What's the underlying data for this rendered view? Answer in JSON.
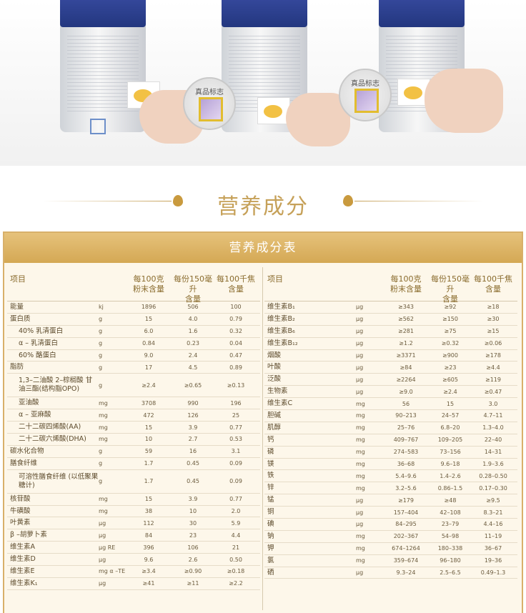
{
  "badge_label": "真品标志",
  "section_title": "营养成分",
  "table_title": "营养成分表",
  "headers": {
    "item": "项目",
    "per100g": [
      "每100克",
      "粉末含量"
    ],
    "per150ml": [
      "每份150毫升",
      "含量"
    ],
    "per100kcal": [
      "每100千焦",
      "含量"
    ]
  },
  "left_rows": [
    {
      "name": "能量",
      "unit": "kj",
      "a": "1896",
      "b": "506",
      "c": "100",
      "indent": false
    },
    {
      "name": "蛋白质",
      "unit": "g",
      "a": "15",
      "b": "4.0",
      "c": "0.79",
      "indent": false
    },
    {
      "name": "40% 乳清蛋白",
      "unit": "g",
      "a": "6.0",
      "b": "1.6",
      "c": "0.32",
      "indent": true
    },
    {
      "name": "α – 乳清蛋白",
      "unit": "g",
      "a": "0.84",
      "b": "0.23",
      "c": "0.04",
      "indent": true
    },
    {
      "name": "60% 酪蛋白",
      "unit": "g",
      "a": "9.0",
      "b": "2.4",
      "c": "0.47",
      "indent": true
    },
    {
      "name": "脂肪",
      "unit": "g",
      "a": "17",
      "b": "4.5",
      "c": "0.89",
      "indent": false
    },
    {
      "name": "1,3–二油酸 2–棕榈酸 甘油三酯(结构脂OPO)",
      "unit": "g",
      "a": "≥2.4",
      "b": "≥0.65",
      "c": "≥0.13",
      "indent": true,
      "tall": true
    },
    {
      "name": "亚油酸",
      "unit": "mg",
      "a": "3708",
      "b": "990",
      "c": "196",
      "indent": true
    },
    {
      "name": "α – 亚麻酸",
      "unit": "mg",
      "a": "472",
      "b": "126",
      "c": "25",
      "indent": true
    },
    {
      "name": "二十二碳四烯酸(AA)",
      "unit": "mg",
      "a": "15",
      "b": "3.9",
      "c": "0.77",
      "indent": true
    },
    {
      "name": "二十二碳六烯酸(DHA)",
      "unit": "mg",
      "a": "10",
      "b": "2.7",
      "c": "0.53",
      "indent": true
    },
    {
      "name": "碳水化合物",
      "unit": "g",
      "a": "59",
      "b": "16",
      "c": "3.1",
      "indent": false
    },
    {
      "name": "膳食纤维",
      "unit": "g",
      "a": "1.7",
      "b": "0.45",
      "c": "0.09",
      "indent": false
    },
    {
      "name": "可溶性膳食纤维 (以低聚果糖计)",
      "unit": "g",
      "a": "1.7",
      "b": "0.45",
      "c": "0.09",
      "indent": true,
      "tall": true
    },
    {
      "name": "核苷酸",
      "unit": "mg",
      "a": "15",
      "b": "3.9",
      "c": "0.77",
      "indent": false
    },
    {
      "name": "牛磺酸",
      "unit": "mg",
      "a": "38",
      "b": "10",
      "c": "2.0",
      "indent": false
    },
    {
      "name": "叶黄素",
      "unit": "μg",
      "a": "112",
      "b": "30",
      "c": "5.9",
      "indent": false
    },
    {
      "name": "β –胡萝卜素",
      "unit": "μg",
      "a": "84",
      "b": "23",
      "c": "4.4",
      "indent": false
    },
    {
      "name": "维生素A",
      "unit": "μg RE",
      "a": "396",
      "b": "106",
      "c": "21",
      "indent": false
    },
    {
      "name": "维生素D",
      "unit": "μg",
      "a": "9.6",
      "b": "2.6",
      "c": "0.50",
      "indent": false
    },
    {
      "name": "维生素E",
      "unit": "mg α –TE",
      "a": "≥3.4",
      "b": "≥0.90",
      "c": "≥0.18",
      "indent": false
    },
    {
      "name": "维生素K₁",
      "unit": "μg",
      "a": "≥41",
      "b": "≥11",
      "c": "≥2.2",
      "indent": false
    }
  ],
  "right_rows": [
    {
      "name": "维生素B₁",
      "unit": "μg",
      "a": "≥343",
      "b": "≥92",
      "c": "≥18"
    },
    {
      "name": "维生素B₂",
      "unit": "μg",
      "a": "≥562",
      "b": "≥150",
      "c": "≥30"
    },
    {
      "name": "维生素B₆",
      "unit": "μg",
      "a": "≥281",
      "b": "≥75",
      "c": "≥15"
    },
    {
      "name": "维生素B₁₂",
      "unit": "μg",
      "a": "≥1.2",
      "b": "≥0.32",
      "c": "≥0.06"
    },
    {
      "name": "烟酸",
      "unit": "μg",
      "a": "≥3371",
      "b": "≥900",
      "c": "≥178"
    },
    {
      "name": "叶酸",
      "unit": "μg",
      "a": "≥84",
      "b": "≥23",
      "c": "≥4.4"
    },
    {
      "name": "泛酸",
      "unit": "μg",
      "a": "≥2264",
      "b": "≥605",
      "c": "≥119"
    },
    {
      "name": "生物素",
      "unit": "μg",
      "a": "≥9.0",
      "b": "≥2.4",
      "c": "≥0.47"
    },
    {
      "name": "维生素C",
      "unit": "mg",
      "a": "56",
      "b": "15",
      "c": "3.0"
    },
    {
      "name": "胆碱",
      "unit": "mg",
      "a": "90–213",
      "b": "24–57",
      "c": "4.7–11"
    },
    {
      "name": "肌醇",
      "unit": "mg",
      "a": "25–76",
      "b": "6.8–20",
      "c": "1.3–4.0"
    },
    {
      "name": "钙",
      "unit": "mg",
      "a": "409–767",
      "b": "109–205",
      "c": "22–40"
    },
    {
      "name": "磷",
      "unit": "mg",
      "a": "274–583",
      "b": "73–156",
      "c": "14–31"
    },
    {
      "name": "镁",
      "unit": "mg",
      "a": "36–68",
      "b": "9.6–18",
      "c": "1.9–3.6"
    },
    {
      "name": "铁",
      "unit": "mg",
      "a": "5.4–9.6",
      "b": "1.4–2.6",
      "c": "0.28–0.50"
    },
    {
      "name": "锌",
      "unit": "mg",
      "a": "3.2–5.6",
      "b": "0.86–1.5",
      "c": "0.17–0.30"
    },
    {
      "name": "锰",
      "unit": "μg",
      "a": "≥179",
      "b": "≥48",
      "c": "≥9.5"
    },
    {
      "name": "铜",
      "unit": "μg",
      "a": "157–404",
      "b": "42–108",
      "c": "8.3–21"
    },
    {
      "name": "碘",
      "unit": "μg",
      "a": "84–295",
      "b": "23–79",
      "c": "4.4–16"
    },
    {
      "name": "钠",
      "unit": "mg",
      "a": "202–367",
      "b": "54–98",
      "c": "11–19"
    },
    {
      "name": "钾",
      "unit": "mg",
      "a": "674–1264",
      "b": "180–338",
      "c": "36–67"
    },
    {
      "name": "氯",
      "unit": "mg",
      "a": "359–674",
      "b": "96–180",
      "c": "19–36"
    },
    {
      "name": "硒",
      "unit": "μg",
      "a": "9.3–24",
      "b": "2.5–6.5",
      "c": "0.49–1.3"
    }
  ],
  "colors": {
    "gold": "#c6a159",
    "title_bar": "#d4a854",
    "can_lid": "#23377f"
  }
}
